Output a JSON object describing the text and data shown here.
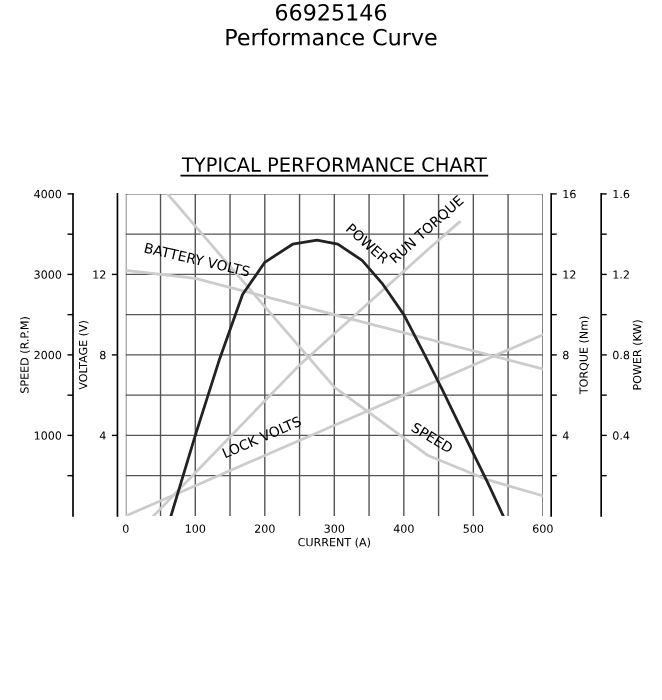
{
  "chart_data": {
    "type": "line",
    "title": "66925146\nPerformance Curve",
    "subtitle": "TYPICAL PERFORMANCE CHART",
    "xlabel": "CURRENT (A)",
    "ylabel": "SPEED (R.P.M)",
    "y2label": "TORQUE (Nm)",
    "y3label": "POWER (KW)",
    "annotations": [
      "VOLTAGE (V)",
      "4",
      "8",
      "12"
    ],
    "xlim": [
      0,
      600
    ],
    "xticks": [
      0,
      {
        "value": 50,
        "label": null
      },
      100,
      {
        "value": 150,
        "label": null
      },
      200,
      {
        "value": 250,
        "label": null
      },
      300,
      {
        "value": 350,
        "label": null
      },
      400,
      {
        "value": 450,
        "label": null
      },
      500,
      {
        "value": 550,
        "label": null
      },
      600
    ],
    "ylim": [
      0,
      4000
    ],
    "yticks": [
      {
        "value": 500,
        "label": null
      },
      1000,
      {
        "value": 1500,
        "label": null
      },
      2000,
      {
        "value": 2500,
        "label": null
      },
      3000,
      {
        "value": 3500,
        "label": null
      },
      4000
    ],
    "y2lim": [
      0,
      16
    ],
    "y2ticks": [
      {
        "value": 2,
        "label": null
      },
      4,
      {
        "value": 6,
        "label": null
      },
      8,
      {
        "value": 10,
        "label": null
      },
      12,
      {
        "value": 14,
        "label": null
      },
      16
    ],
    "y3lim": [
      0,
      1.6
    ],
    "y3ticks": [
      {
        "value": 0.2,
        "label": null
      },
      0.4,
      {
        "value": 0.6,
        "label": null
      },
      0.8,
      {
        "value": 1.0,
        "label": null
      },
      1.2,
      {
        "value": 1.4,
        "label": null
      },
      1.6
    ],
    "grid": true,
    "series": [
      {
        "name": "BATTERY VOLTS",
        "axis": "y2",
        "color": "#cccccc",
        "x": [
          0,
          50,
          100,
          300,
          600
        ],
        "values": [
          12.2,
          12.0,
          11.8,
          10.0,
          7.3
        ]
      },
      {
        "name": "LOCK VOLTS",
        "axis": "y2",
        "color": "#cccccc",
        "x": [
          0,
          100,
          200,
          400,
          600
        ],
        "values": [
          0,
          1.5,
          3,
          6,
          9
        ]
      },
      {
        "name": "SPEED",
        "color": "#cccccc",
        "x": [
          60,
          300,
          435,
          520,
          600
        ],
        "values": [
          4000,
          1600,
          750,
          450,
          250
        ]
      },
      {
        "name": "RUN TORQUE",
        "axis": "y2",
        "color": "#cccccc",
        "x": [
          40,
          250,
          440,
          480
        ],
        "values": [
          0,
          7.5,
          13.4,
          14.6
        ]
      },
      {
        "name": "POWER",
        "axis": "y3",
        "color": "#222222",
        "x": [
          65,
          100,
          135,
          168,
          200,
          240,
          275,
          305,
          340,
          370,
          400,
          430,
          455,
          490,
          520,
          543
        ],
        "values": [
          0,
          0.4,
          0.78,
          1.1,
          1.26,
          1.35,
          1.37,
          1.35,
          1.27,
          1.15,
          1.0,
          0.8,
          0.63,
          0.38,
          0.17,
          0
        ]
      }
    ]
  }
}
